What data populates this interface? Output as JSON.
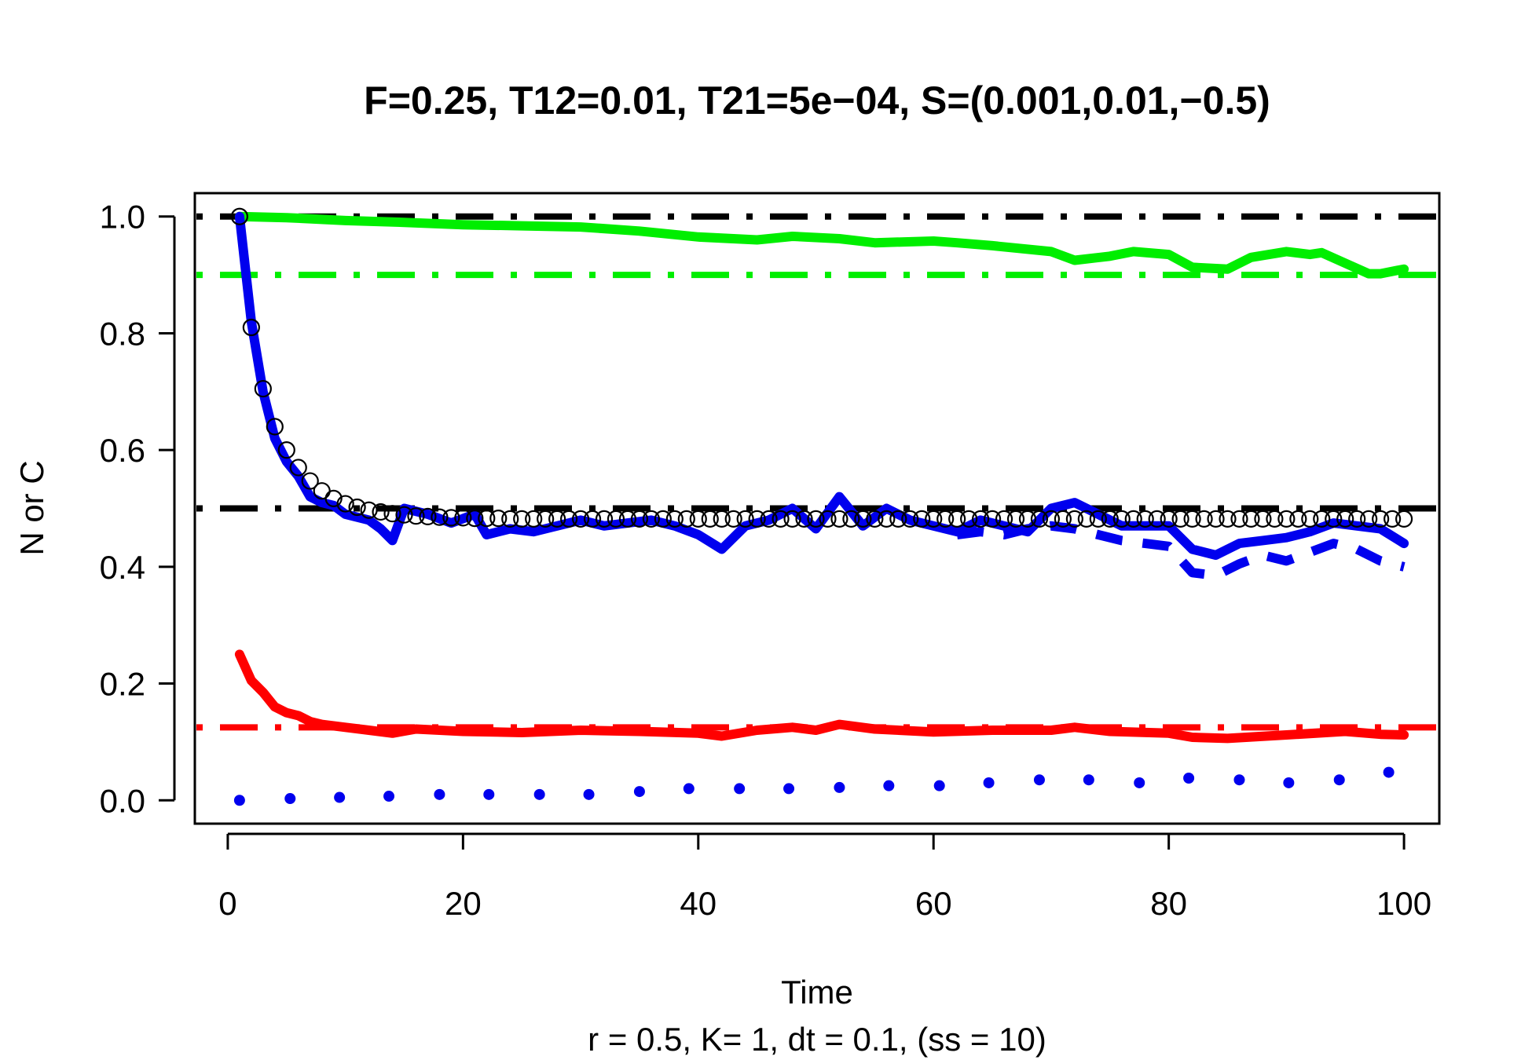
{
  "chart_data": {
    "type": "line",
    "title": "F=0.25, T12=0.01, T21=5e−04, S=(0.001,0.01,−0.5)",
    "xlabel": "Time",
    "ylabel": "N or C",
    "subtitle": "r = 0.5, K= 1, dt = 0.1, (ss = 10)",
    "xlim": [
      -2.8,
      103
    ],
    "ylim": [
      -0.04,
      1.04
    ],
    "xticks": [
      0,
      20,
      40,
      60,
      80,
      100
    ],
    "yticks": [
      0.0,
      0.2,
      0.4,
      0.6,
      0.8,
      1.0
    ],
    "xtick_labels": [
      "0",
      "20",
      "40",
      "60",
      "80",
      "100"
    ],
    "ytick_labels": [
      "0.0",
      "0.2",
      "0.4",
      "0.6",
      "0.8",
      "1.0"
    ],
    "grid": false,
    "series": [
      {
        "color": "#00ee00",
        "style": "solid",
        "x": [
          1,
          5,
          10,
          15,
          20,
          25,
          30,
          35,
          40,
          45,
          48,
          52,
          55,
          60,
          62,
          65,
          70,
          72,
          75,
          77,
          80,
          82,
          85,
          87,
          90,
          92,
          93,
          95,
          97,
          98,
          100
        ],
        "y": [
          1.0,
          0.998,
          0.993,
          0.99,
          0.986,
          0.984,
          0.982,
          0.975,
          0.965,
          0.96,
          0.966,
          0.962,
          0.955,
          0.958,
          0.955,
          0.95,
          0.94,
          0.925,
          0.932,
          0.94,
          0.935,
          0.913,
          0.91,
          0.93,
          0.94,
          0.935,
          0.938,
          0.92,
          0.902,
          0.902,
          0.91
        ]
      },
      {
        "color": "#ff0000",
        "style": "solid",
        "x": [
          1,
          2,
          3,
          4,
          5,
          6,
          7,
          8,
          10,
          12,
          14,
          16,
          20,
          25,
          30,
          35,
          40,
          42,
          45,
          48,
          50,
          52,
          55,
          60,
          65,
          70,
          72,
          75,
          80,
          82,
          85,
          90,
          95,
          98,
          100
        ],
        "y": [
          0.25,
          0.205,
          0.185,
          0.16,
          0.15,
          0.145,
          0.135,
          0.13,
          0.125,
          0.12,
          0.115,
          0.122,
          0.118,
          0.116,
          0.12,
          0.118,
          0.115,
          0.11,
          0.12,
          0.125,
          0.12,
          0.13,
          0.122,
          0.117,
          0.12,
          0.12,
          0.125,
          0.118,
          0.115,
          0.108,
          0.106,
          0.112,
          0.118,
          0.113,
          0.112
        ]
      },
      {
        "color": "#0000ee",
        "style": "solid",
        "x": [
          1,
          2,
          3,
          4,
          5,
          6,
          7,
          8,
          9,
          10,
          11,
          12,
          13,
          14,
          15,
          17,
          19,
          21,
          22,
          24,
          26,
          28,
          30,
          32,
          34,
          36,
          38,
          40,
          42,
          44,
          46,
          48,
          50,
          52,
          54,
          56,
          58,
          60,
          62,
          64,
          66,
          68,
          70,
          72,
          74,
          76,
          78,
          80,
          82,
          84,
          86,
          88,
          90,
          92,
          94,
          96,
          98,
          100
        ],
        "y": [
          1.0,
          0.82,
          0.7,
          0.62,
          0.58,
          0.555,
          0.52,
          0.51,
          0.505,
          0.49,
          0.485,
          0.48,
          0.465,
          0.445,
          0.5,
          0.49,
          0.475,
          0.49,
          0.455,
          0.465,
          0.46,
          0.47,
          0.48,
          0.47,
          0.475,
          0.48,
          0.47,
          0.455,
          0.43,
          0.47,
          0.48,
          0.5,
          0.465,
          0.52,
          0.47,
          0.5,
          0.48,
          0.47,
          0.46,
          0.48,
          0.47,
          0.46,
          0.5,
          0.51,
          0.49,
          0.47,
          0.47,
          0.47,
          0.43,
          0.42,
          0.44,
          0.445,
          0.45,
          0.46,
          0.475,
          0.47,
          0.465,
          0.44
        ]
      },
      {
        "color": "#0000ee",
        "style": "dashed",
        "x": [
          62,
          64,
          66,
          68,
          70,
          72,
          74,
          76,
          78,
          80,
          82,
          84,
          86,
          88,
          90,
          92,
          94,
          96,
          98,
          100
        ],
        "y": [
          0.455,
          0.46,
          0.455,
          0.465,
          0.47,
          0.465,
          0.455,
          0.445,
          0.44,
          0.435,
          0.39,
          0.385,
          0.405,
          0.42,
          0.41,
          0.425,
          0.44,
          0.43,
          0.41,
          0.4
        ]
      },
      {
        "color": "#0000ee",
        "style": "points",
        "x": [
          1,
          5.3,
          9.5,
          13.7,
          18,
          22.2,
          26.5,
          30.7,
          35,
          39.2,
          43.5,
          47.7,
          52,
          56.2,
          60.5,
          64.7,
          69,
          73.2,
          77.5,
          81.7,
          86,
          90.2,
          94.5,
          98.7
        ],
        "y": [
          0.0,
          0.003,
          0.005,
          0.007,
          0.01,
          0.01,
          0.01,
          0.01,
          0.015,
          0.02,
          0.02,
          0.02,
          0.022,
          0.025,
          0.025,
          0.03,
          0.035,
          0.035,
          0.03,
          0.038,
          0.035,
          0.03,
          0.035,
          0.048
        ]
      },
      {
        "color": "#000000",
        "style": "circles",
        "x": [
          1,
          2,
          3,
          4,
          5,
          6,
          7,
          8,
          9,
          10,
          11,
          12,
          13,
          14,
          15,
          16,
          17,
          18,
          19,
          20,
          21,
          22,
          23,
          24,
          25,
          26,
          27,
          28,
          29,
          30,
          31,
          32,
          33,
          34,
          35,
          36,
          37,
          38,
          39,
          40,
          41,
          42,
          43,
          44,
          45,
          46,
          47,
          48,
          49,
          50,
          51,
          52,
          53,
          54,
          55,
          56,
          57,
          58,
          59,
          60,
          61,
          62,
          63,
          64,
          65,
          66,
          67,
          68,
          69,
          70,
          71,
          72,
          73,
          74,
          75,
          76,
          77,
          78,
          79,
          80,
          81,
          82,
          83,
          84,
          85,
          86,
          87,
          88,
          89,
          90,
          91,
          92,
          93,
          94,
          95,
          96,
          97,
          98,
          99,
          100
        ],
        "y": [
          1.0,
          0.81,
          0.705,
          0.64,
          0.6,
          0.57,
          0.547,
          0.53,
          0.517,
          0.508,
          0.502,
          0.497,
          0.494,
          0.491,
          0.489,
          0.487,
          0.486,
          0.485,
          0.484,
          0.484,
          0.483,
          0.483,
          0.483,
          0.482,
          0.482,
          0.482,
          0.482,
          0.482,
          0.482,
          0.482,
          0.482,
          0.482,
          0.482,
          0.482,
          0.482,
          0.482,
          0.482,
          0.482,
          0.482,
          0.482,
          0.482,
          0.482,
          0.482,
          0.482,
          0.482,
          0.482,
          0.482,
          0.482,
          0.482,
          0.482,
          0.482,
          0.482,
          0.482,
          0.482,
          0.482,
          0.482,
          0.482,
          0.482,
          0.482,
          0.482,
          0.482,
          0.482,
          0.482,
          0.482,
          0.482,
          0.482,
          0.482,
          0.482,
          0.482,
          0.482,
          0.482,
          0.482,
          0.482,
          0.482,
          0.482,
          0.482,
          0.482,
          0.482,
          0.482,
          0.482,
          0.482,
          0.482,
          0.482,
          0.482,
          0.482,
          0.482,
          0.482,
          0.482,
          0.482,
          0.482,
          0.482,
          0.482,
          0.482,
          0.482,
          0.482,
          0.482,
          0.482,
          0.482,
          0.482,
          0.482
        ]
      }
    ],
    "reference_lines": [
      {
        "y": 1.0,
        "color": "#000000",
        "style": "dashdot"
      },
      {
        "y": 0.9,
        "color": "#00ee00",
        "style": "dashdot"
      },
      {
        "y": 0.5,
        "color": "#000000",
        "style": "dashdot"
      },
      {
        "y": 0.125,
        "color": "#ff0000",
        "style": "dashdot"
      }
    ]
  }
}
